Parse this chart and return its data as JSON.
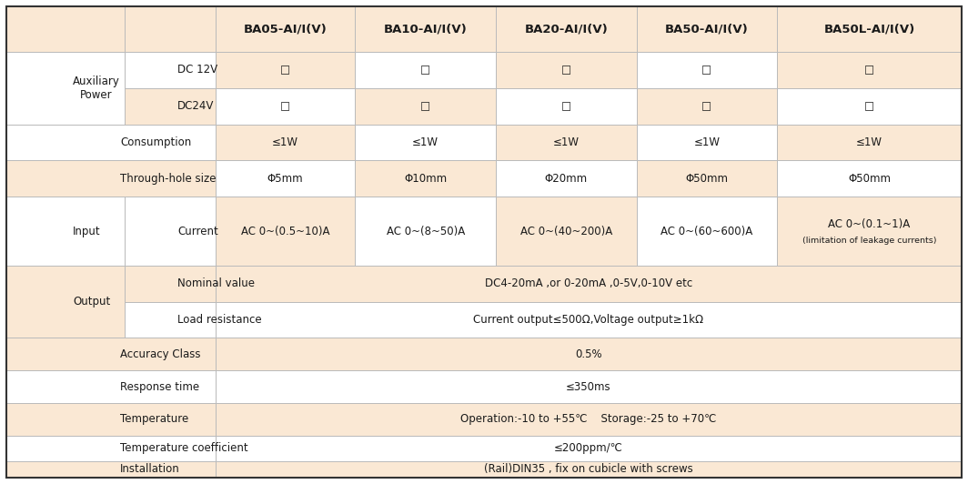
{
  "bg_light": "#FAE8D4",
  "bg_white": "#FFFFFF",
  "border_col": "#BBBBBB",
  "border_outer": "#333333",
  "text_col": "#1A1A1A",
  "header_font": 9.5,
  "body_font": 8.5,
  "small_font": 6.8,
  "col_headers": [
    "BA05-AI/I(V)",
    "BA10-AI/I(V)",
    "BA20-AI/I(V)",
    "BA50-AI/I(V)",
    "BA50L-AI/I(V)"
  ],
  "tilde": "~"
}
